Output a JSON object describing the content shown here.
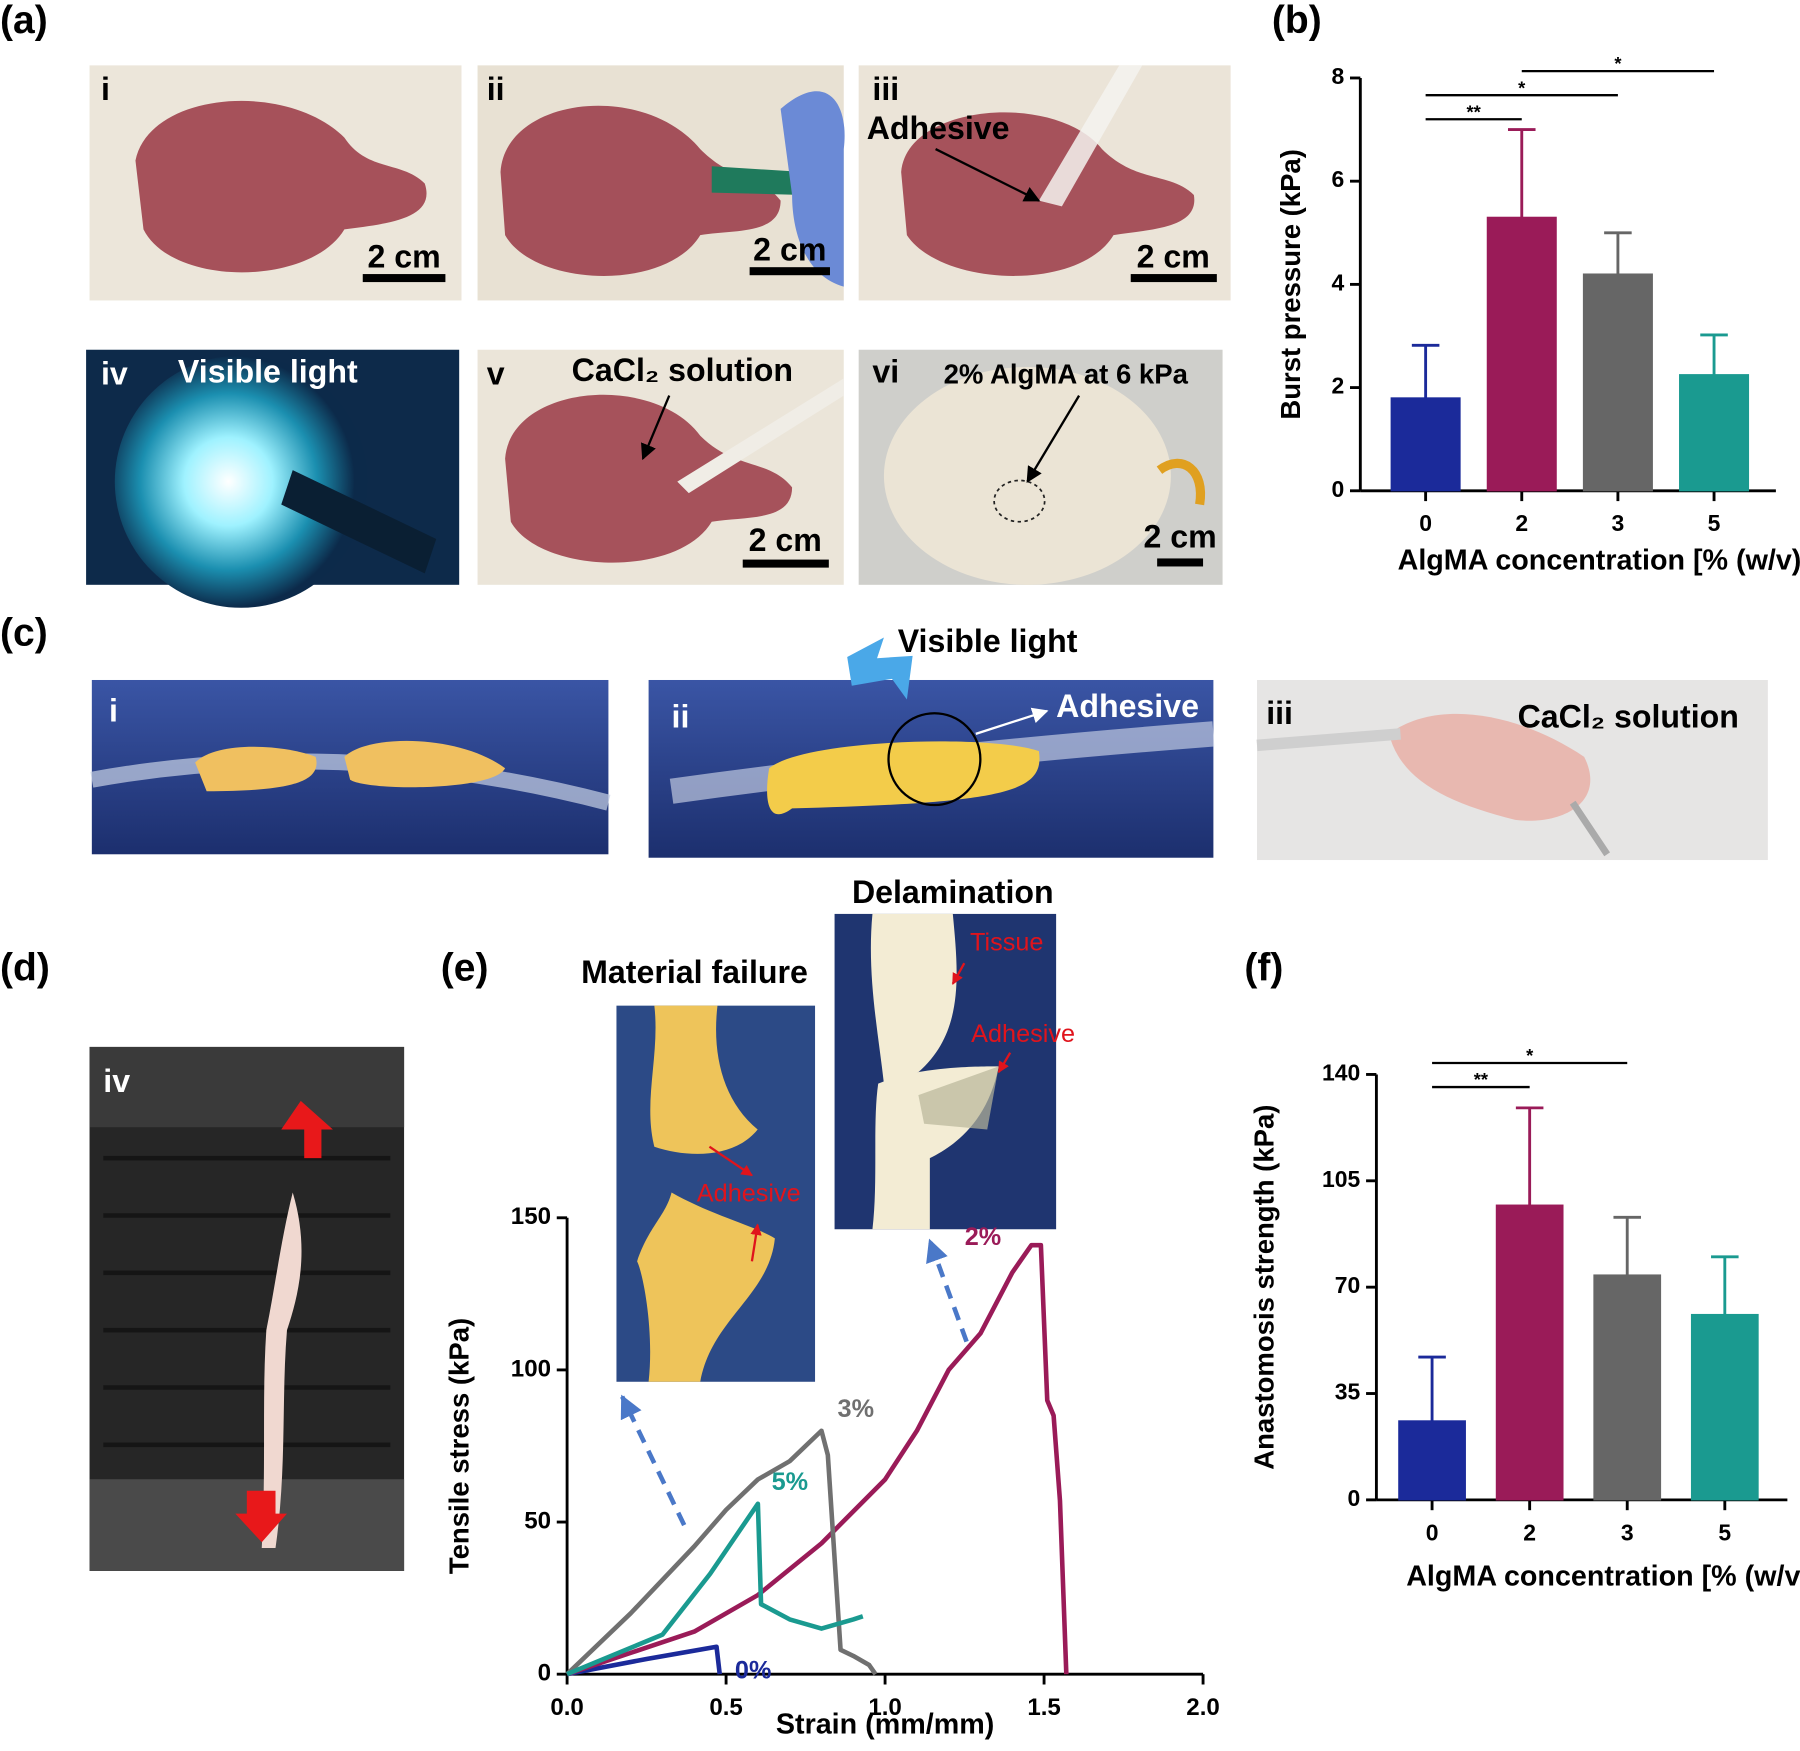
{
  "panel_labels": [
    "(a)",
    "(b)",
    "(c)",
    "(d)",
    "(e)",
    "(f)"
  ],
  "panel_a": {
    "photos": [
      {
        "label": "i",
        "scale_bar": "2 cm"
      },
      {
        "label": "ii",
        "scale_bar": "2 cm"
      },
      {
        "label": "iii",
        "annotation": "Adhesive",
        "scale_bar": "2 cm"
      },
      {
        "label": "iv",
        "annotation": "Visible light"
      },
      {
        "label": "v",
        "annotation": "CaCl₂ solution",
        "scale_bar": "2 cm"
      },
      {
        "label": "vi",
        "annotation": "2% AlgMA at 6 kPa",
        "scale_bar": "2 cm"
      }
    ]
  },
  "panel_c": {
    "light": "Visible light",
    "photos": [
      {
        "label": "i"
      },
      {
        "label": "ii",
        "annotation": "Adhesive"
      },
      {
        "label": "iii",
        "annotation": "CaCl₂ solution"
      }
    ]
  },
  "panel_d": {
    "photos": [
      {
        "label": "iv"
      }
    ]
  },
  "panel_e_insets": [
    {
      "title": "Material failure",
      "labels": [
        "Adhesive"
      ]
    },
    {
      "title": "Delamination",
      "labels": [
        "Tissue",
        "Adhesive"
      ]
    }
  ],
  "chart_data": [
    {
      "type": "bar",
      "categories": [
        "0",
        "2",
        "3",
        "5"
      ],
      "values": [
        1.8,
        5.3,
        4.2,
        2.25
      ],
      "errors": [
        1.02,
        1.7,
        0.8,
        0.77
      ],
      "colors": [
        "#1b2a9a",
        "#9a1b58",
        "#666666",
        "#1a9a90"
      ],
      "ylim": [
        0,
        8
      ],
      "yticks": [
        0,
        2,
        4,
        6,
        8
      ],
      "y_label": "Burst pressure (kPa)",
      "x_label": "AlgMA concentration [% (w/v)]",
      "significance": [
        {
          "between": [
            "0",
            "2"
          ],
          "label": "**"
        },
        {
          "between": [
            "0",
            "3"
          ],
          "label": "*"
        },
        {
          "between": [
            "2",
            "5"
          ],
          "label": "*"
        }
      ]
    },
    {
      "type": "line",
      "series": [
        {
          "name": "0%",
          "color": "#1b2a9a",
          "x": [
            0,
            0.25,
            0.47,
            0.48
          ],
          "values": [
            0,
            5,
            9,
            0
          ]
        },
        {
          "name": "2%",
          "color": "#9a1b58",
          "x": [
            0,
            0.2,
            0.4,
            0.6,
            0.8,
            1.0,
            1.1,
            1.2,
            1.3,
            1.4,
            1.46,
            1.49,
            1.51,
            1.53,
            1.55,
            1.57
          ],
          "values": [
            0,
            7,
            14,
            26,
            43,
            64,
            80,
            100,
            112,
            132,
            141,
            141,
            90,
            85,
            57,
            0
          ]
        },
        {
          "name": "3%",
          "color": "#707070",
          "x": [
            0,
            0.2,
            0.4,
            0.5,
            0.6,
            0.7,
            0.8,
            0.82,
            0.84,
            0.86,
            0.9,
            0.95,
            0.97
          ],
          "values": [
            0,
            20,
            42,
            54,
            64,
            70,
            80,
            72,
            40,
            8,
            6,
            3,
            0
          ]
        },
        {
          "name": "5%",
          "color": "#1a9a90",
          "x": [
            0,
            0.3,
            0.45,
            0.6,
            0.61,
            0.7,
            0.8,
            0.9,
            0.93
          ],
          "values": [
            0,
            13,
            33,
            56,
            23,
            18,
            15,
            18,
            19
          ]
        }
      ],
      "xlim": [
        0,
        2
      ],
      "xticks": [
        {
          "value": 0,
          "label": "0.0"
        },
        0.5,
        {
          "value": 1,
          "label": "1.0"
        },
        1.5,
        {
          "value": 2,
          "label": "2.0"
        }
      ],
      "ylim": [
        0,
        150
      ],
      "yticks": [
        0,
        50,
        100,
        150
      ],
      "x_label": "Strain (mm/mm)",
      "y_label": "Tensile stress (kPa)"
    },
    {
      "type": "bar",
      "categories": [
        "0",
        "2",
        "3",
        "5"
      ],
      "values": [
        26,
        97,
        74,
        61
      ],
      "errors": [
        21,
        32,
        19,
        19
      ],
      "colors": [
        "#1b2a9a",
        "#9a1b58",
        "#666666",
        "#1a9a90"
      ],
      "ylim": [
        0,
        140
      ],
      "yticks": [
        0,
        35,
        70,
        105,
        140
      ],
      "y_label": "Anastomosis strength (kPa)",
      "x_label": "AlgMA concentration [% (w/v)]",
      "significance": [
        {
          "between": [
            "0",
            "2"
          ],
          "label": "**"
        },
        {
          "between": [
            "0",
            "3"
          ],
          "label": "*"
        }
      ]
    }
  ]
}
